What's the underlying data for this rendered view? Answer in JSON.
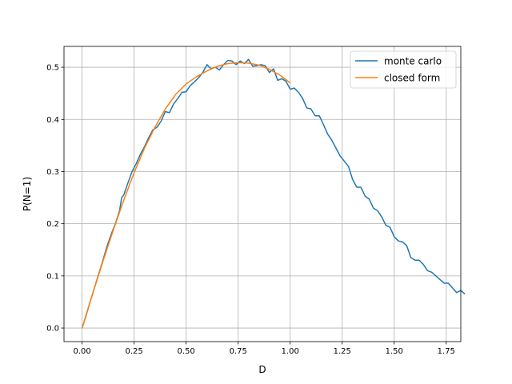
{
  "chart_data": {
    "type": "line",
    "xlabel": "D",
    "ylabel": "P(N=1)",
    "xlim": [
      -0.087,
      1.82
    ],
    "ylim": [
      -0.026,
      0.54
    ],
    "xticks": [
      0.0,
      0.25,
      0.5,
      0.75,
      1.0,
      1.25,
      1.5,
      1.75
    ],
    "xtick_labels": [
      "0.00",
      "0.25",
      "0.50",
      "0.75",
      "1.00",
      "1.25",
      "1.50",
      "1.75"
    ],
    "yticks": [
      0.0,
      0.1,
      0.2,
      0.3,
      0.4,
      0.5
    ],
    "ytick_labels": [
      "0.0",
      "0.1",
      "0.2",
      "0.3",
      "0.4",
      "0.5"
    ],
    "grid": true,
    "legend": "top-right",
    "series": [
      {
        "name": "monte carlo",
        "color": "#1f77b4",
        "points": [
          [
            0.0,
            0.0
          ],
          [
            0.02,
            0.025
          ],
          [
            0.04,
            0.052
          ],
          [
            0.06,
            0.078
          ],
          [
            0.08,
            0.104
          ],
          [
            0.1,
            0.13
          ],
          [
            0.12,
            0.157
          ],
          [
            0.14,
            0.18
          ],
          [
            0.16,
            0.2
          ],
          [
            0.18,
            0.225
          ],
          [
            0.19,
            0.25
          ],
          [
            0.2,
            0.255
          ],
          [
            0.22,
            0.278
          ],
          [
            0.24,
            0.3
          ],
          [
            0.26,
            0.315
          ],
          [
            0.28,
            0.333
          ],
          [
            0.3,
            0.348
          ],
          [
            0.32,
            0.365
          ],
          [
            0.34,
            0.38
          ],
          [
            0.36,
            0.385
          ],
          [
            0.38,
            0.397
          ],
          [
            0.4,
            0.415
          ],
          [
            0.42,
            0.413
          ],
          [
            0.44,
            0.43
          ],
          [
            0.46,
            0.44
          ],
          [
            0.48,
            0.452
          ],
          [
            0.5,
            0.453
          ],
          [
            0.52,
            0.465
          ],
          [
            0.54,
            0.472
          ],
          [
            0.56,
            0.48
          ],
          [
            0.58,
            0.49
          ],
          [
            0.6,
            0.505
          ],
          [
            0.62,
            0.497
          ],
          [
            0.64,
            0.5
          ],
          [
            0.66,
            0.495
          ],
          [
            0.68,
            0.505
          ],
          [
            0.7,
            0.513
          ],
          [
            0.72,
            0.512
          ],
          [
            0.74,
            0.505
          ],
          [
            0.76,
            0.512
          ],
          [
            0.78,
            0.507
          ],
          [
            0.8,
            0.515
          ],
          [
            0.82,
            0.502
          ],
          [
            0.84,
            0.503
          ],
          [
            0.86,
            0.505
          ],
          [
            0.88,
            0.503
          ],
          [
            0.9,
            0.49
          ],
          [
            0.92,
            0.497
          ],
          [
            0.94,
            0.475
          ],
          [
            0.96,
            0.478
          ],
          [
            0.98,
            0.473
          ],
          [
            1.0,
            0.458
          ],
          [
            1.02,
            0.46
          ],
          [
            1.04,
            0.452
          ],
          [
            1.06,
            0.44
          ],
          [
            1.08,
            0.422
          ],
          [
            1.1,
            0.42
          ],
          [
            1.12,
            0.407
          ],
          [
            1.14,
            0.407
          ],
          [
            1.16,
            0.39
          ],
          [
            1.18,
            0.372
          ],
          [
            1.2,
            0.36
          ],
          [
            1.22,
            0.345
          ],
          [
            1.24,
            0.33
          ],
          [
            1.26,
            0.32
          ],
          [
            1.28,
            0.31
          ],
          [
            1.3,
            0.285
          ],
          [
            1.32,
            0.27
          ],
          [
            1.34,
            0.27
          ],
          [
            1.36,
            0.253
          ],
          [
            1.38,
            0.247
          ],
          [
            1.4,
            0.23
          ],
          [
            1.42,
            0.225
          ],
          [
            1.44,
            0.213
          ],
          [
            1.46,
            0.197
          ],
          [
            1.48,
            0.193
          ],
          [
            1.5,
            0.175
          ],
          [
            1.52,
            0.167
          ],
          [
            1.54,
            0.165
          ],
          [
            1.56,
            0.158
          ],
          [
            1.58,
            0.135
          ],
          [
            1.6,
            0.13
          ],
          [
            1.62,
            0.13
          ],
          [
            1.64,
            0.122
          ],
          [
            1.66,
            0.11
          ],
          [
            1.68,
            0.107
          ],
          [
            1.7,
            0.1
          ],
          [
            1.72,
            0.093
          ],
          [
            1.74,
            0.086
          ],
          [
            1.76,
            0.086
          ],
          [
            1.78,
            0.077
          ],
          [
            1.8,
            0.068
          ],
          [
            1.82,
            0.072
          ],
          [
            1.84,
            0.065
          ]
        ]
      },
      {
        "name": "closed form",
        "color": "#ff7f0e",
        "points": [
          [
            0.0,
            0.0
          ],
          [
            0.05,
            0.065
          ],
          [
            0.1,
            0.128
          ],
          [
            0.15,
            0.188
          ],
          [
            0.2,
            0.245
          ],
          [
            0.25,
            0.298
          ],
          [
            0.3,
            0.345
          ],
          [
            0.35,
            0.385
          ],
          [
            0.4,
            0.42
          ],
          [
            0.45,
            0.448
          ],
          [
            0.5,
            0.468
          ],
          [
            0.55,
            0.482
          ],
          [
            0.6,
            0.493
          ],
          [
            0.65,
            0.502
          ],
          [
            0.7,
            0.507
          ],
          [
            0.75,
            0.509
          ],
          [
            0.8,
            0.508
          ],
          [
            0.85,
            0.504
          ],
          [
            0.9,
            0.496
          ],
          [
            0.95,
            0.485
          ],
          [
            1.0,
            0.47
          ]
        ]
      }
    ]
  }
}
